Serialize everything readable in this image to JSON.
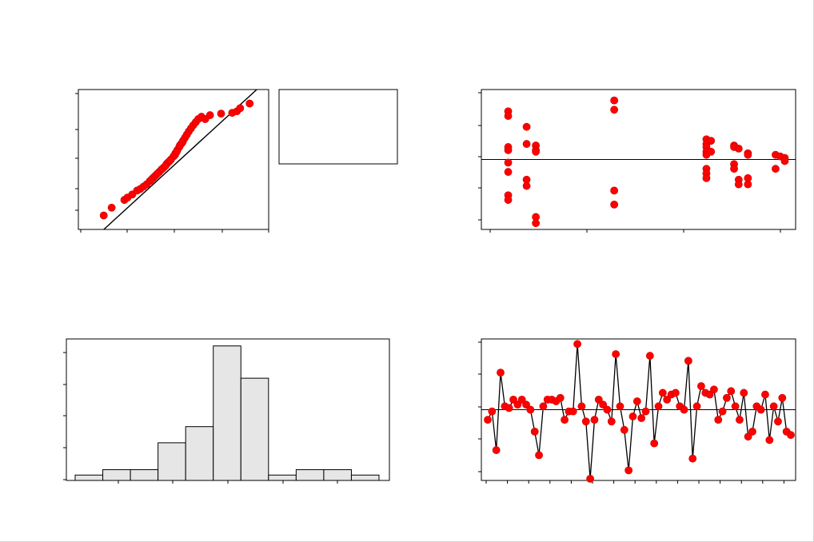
{
  "colors": {
    "point": "#ff0000",
    "point_edge": "#cc0000",
    "line": "#000000",
    "bar_fill": "#e6e6e6",
    "bar_stroke": "#000000",
    "frame": "#000000"
  },
  "chart_data": [
    {
      "panel": "normal-probability-plot",
      "type": "scatter",
      "title": "",
      "xlabel": "",
      "ylabel": "",
      "xlim": [
        -3,
        3
      ],
      "ylim": [
        -4.5,
        4.5
      ],
      "legend": "right",
      "legend_entries": [],
      "fit_line": [
        [
          -3,
          -6.0
        ],
        [
          3,
          5.2
        ]
      ],
      "points": [
        [
          -2.2,
          -3.6
        ],
        [
          -1.95,
          -3.1
        ],
        [
          -1.55,
          -2.6
        ],
        [
          -1.45,
          -2.45
        ],
        [
          -1.3,
          -2.25
        ],
        [
          -1.15,
          -2.0
        ],
        [
          -1.05,
          -1.9
        ],
        [
          -0.95,
          -1.75
        ],
        [
          -0.85,
          -1.6
        ],
        [
          -0.75,
          -1.4
        ],
        [
          -0.65,
          -1.2
        ],
        [
          -0.55,
          -1.0
        ],
        [
          -0.45,
          -0.8
        ],
        [
          -0.38,
          -0.65
        ],
        [
          -0.3,
          -0.5
        ],
        [
          -0.22,
          -0.3
        ],
        [
          -0.15,
          -0.15
        ],
        [
          -0.08,
          0.0
        ],
        [
          0.0,
          0.2
        ],
        [
          0.06,
          0.4
        ],
        [
          0.12,
          0.6
        ],
        [
          0.18,
          0.8
        ],
        [
          0.24,
          1.0
        ],
        [
          0.3,
          1.2
        ],
        [
          0.36,
          1.4
        ],
        [
          0.42,
          1.6
        ],
        [
          0.48,
          1.8
        ],
        [
          0.55,
          2.0
        ],
        [
          0.62,
          2.2
        ],
        [
          0.7,
          2.4
        ],
        [
          0.78,
          2.6
        ],
        [
          0.88,
          2.75
        ],
        [
          1.0,
          2.6
        ],
        [
          1.15,
          2.85
        ],
        [
          1.5,
          2.95
        ],
        [
          1.85,
          3.0
        ],
        [
          2.0,
          3.1
        ],
        [
          2.1,
          3.3
        ],
        [
          2.4,
          3.6
        ],
        [
          -0.2,
          -0.25
        ],
        [
          -0.1,
          -0.05
        ],
        [
          0.05,
          0.3
        ],
        [
          0.1,
          0.5
        ],
        [
          0.2,
          0.9
        ],
        [
          0.28,
          1.1
        ],
        [
          -0.6,
          -1.1
        ],
        [
          -0.7,
          -1.3
        ],
        [
          -0.5,
          -0.9
        ],
        [
          -0.35,
          -0.6
        ],
        [
          -0.25,
          -0.4
        ]
      ]
    },
    {
      "panel": "residuals-vs-fits",
      "type": "scatter",
      "title": "",
      "xlabel": "",
      "ylabel": "",
      "xlim": [
        -0.1,
        3.1
      ],
      "ylim": [
        -4.5,
        4.5
      ],
      "reference_line": 0,
      "points": [
        [
          0.0,
          3.1
        ],
        [
          0.0,
          2.8
        ],
        [
          0.0,
          0.8
        ],
        [
          0.0,
          0.6
        ],
        [
          0.0,
          -0.2
        ],
        [
          0.0,
          -0.8
        ],
        [
          0.0,
          -2.3
        ],
        [
          0.0,
          -2.6
        ],
        [
          0.2,
          2.1
        ],
        [
          0.2,
          1.0
        ],
        [
          0.2,
          -1.3
        ],
        [
          0.2,
          -1.7
        ],
        [
          0.3,
          0.9
        ],
        [
          0.3,
          0.6
        ],
        [
          0.3,
          0.5
        ],
        [
          0.3,
          -3.7
        ],
        [
          0.3,
          -4.1
        ],
        [
          1.15,
          3.8
        ],
        [
          1.15,
          3.2
        ],
        [
          1.15,
          -2.0
        ],
        [
          1.15,
          -2.9
        ],
        [
          2.15,
          1.3
        ],
        [
          2.15,
          1.0
        ],
        [
          2.15,
          0.8
        ],
        [
          2.15,
          0.5
        ],
        [
          2.15,
          0.3
        ],
        [
          2.15,
          -0.6
        ],
        [
          2.15,
          -0.9
        ],
        [
          2.15,
          -1.2
        ],
        [
          2.2,
          1.2
        ],
        [
          2.2,
          0.5
        ],
        [
          2.45,
          0.9
        ],
        [
          2.45,
          0.8
        ],
        [
          2.45,
          -0.3
        ],
        [
          2.45,
          -0.6
        ],
        [
          2.5,
          0.7
        ],
        [
          2.5,
          -1.3
        ],
        [
          2.5,
          -1.6
        ],
        [
          2.6,
          0.4
        ],
        [
          2.6,
          0.3
        ],
        [
          2.6,
          -1.2
        ],
        [
          2.6,
          -1.6
        ],
        [
          2.9,
          0.3
        ],
        [
          2.9,
          -0.6
        ],
        [
          2.95,
          0.2
        ],
        [
          3.0,
          0.1
        ],
        [
          3.0,
          -0.1
        ]
      ]
    },
    {
      "panel": "histogram",
      "type": "bar",
      "title": "",
      "xlabel": "",
      "ylabel": "",
      "bin_edges": [
        -5.5,
        -4.5,
        -3.5,
        -2.5,
        -1.5,
        -0.5,
        0.5,
        1.5,
        2.5,
        3.5,
        4.5,
        5.5
      ],
      "values": [
        1,
        2,
        2,
        7,
        10,
        25,
        19,
        1,
        2,
        2,
        1
      ],
      "ylim": [
        0,
        26
      ]
    },
    {
      "panel": "residuals-vs-order",
      "type": "line",
      "title": "",
      "xlabel": "",
      "ylabel": "",
      "xlim": [
        0,
        73
      ],
      "ylim": [
        -4.2,
        4.2
      ],
      "reference_line": 0,
      "values": [
        -0.6,
        -0.1,
        -2.4,
        2.2,
        0.2,
        0.1,
        0.6,
        0.3,
        0.6,
        0.3,
        0.0,
        -1.3,
        -2.7,
        0.2,
        0.6,
        0.6,
        0.5,
        0.7,
        -0.6,
        -0.1,
        -0.1,
        3.9,
        0.2,
        -0.7,
        -4.1,
        -0.6,
        0.6,
        0.3,
        0.0,
        -0.7,
        3.3,
        0.2,
        -1.2,
        -3.6,
        -0.4,
        0.5,
        -0.5,
        -0.1,
        3.2,
        -2.0,
        0.2,
        1.0,
        0.6,
        0.9,
        1.0,
        0.2,
        0.0,
        2.9,
        -2.9,
        0.2,
        1.4,
        1.0,
        0.9,
        1.2,
        -0.6,
        -0.1,
        0.7,
        1.1,
        0.2,
        -0.6,
        1.0,
        -1.6,
        -1.3,
        0.2,
        0.0,
        0.9,
        -1.8,
        0.2,
        -0.7,
        0.7,
        -1.3,
        -1.5
      ]
    }
  ]
}
